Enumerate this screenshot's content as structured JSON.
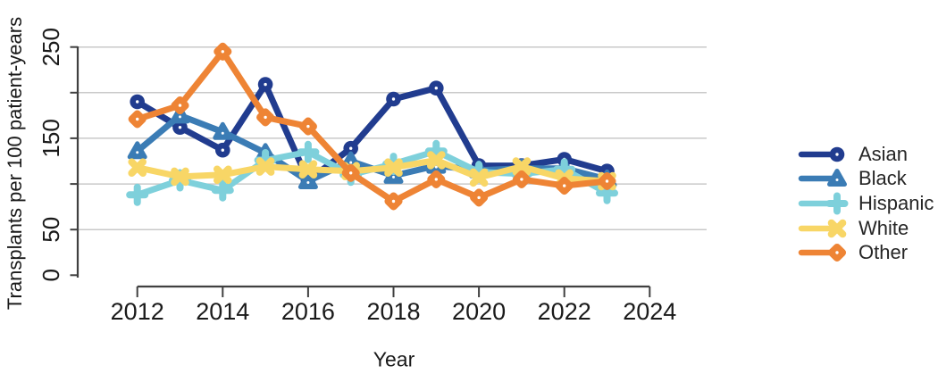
{
  "chart_data": {
    "type": "line",
    "title": "",
    "xlabel": "Year",
    "ylabel": "Transplants per 100 patient-years",
    "x": [
      2012,
      2013,
      2014,
      2015,
      2016,
      2017,
      2018,
      2019,
      2020,
      2021,
      2022,
      2023
    ],
    "series": [
      {
        "name": "Asian",
        "color": "#213c8f",
        "marker": "circle",
        "values": [
          190,
          162,
          137,
          209,
          104,
          139,
          193,
          205,
          120,
          120,
          127,
          114
        ]
      },
      {
        "name": "Black",
        "color": "#3b7cb5",
        "marker": "triangle",
        "values": [
          136,
          175,
          157,
          134,
          103,
          125,
          109,
          120,
          115,
          117,
          117,
          105
        ]
      },
      {
        "name": "Hispanic",
        "color": "#7ed0db",
        "marker": "plus",
        "values": [
          88,
          104,
          93,
          126,
          135,
          110,
          122,
          136,
          113,
          111,
          116,
          90
        ]
      },
      {
        "name": "White",
        "color": "#f8d666",
        "marker": "x",
        "values": [
          118,
          108,
          110,
          119,
          116,
          114,
          118,
          126,
          107,
          119,
          106,
          103
        ]
      },
      {
        "name": "Other",
        "color": "#ee8435",
        "marker": "diamond",
        "values": [
          171,
          186,
          245,
          173,
          163,
          112,
          81,
          105,
          85,
          105,
          98,
          103
        ]
      }
    ],
    "x_ticks": [
      2012,
      2014,
      2016,
      2018,
      2020,
      2022,
      2024
    ],
    "y_ticks_all": [
      0,
      50,
      100,
      150,
      200,
      250
    ],
    "y_ticks_labeled": [
      0,
      50,
      150,
      250
    ],
    "xlim": [
      2012,
      2024
    ],
    "ylim": [
      0,
      250
    ],
    "grid": "horizontal-only",
    "legend_position": "right",
    "axis_color": "#404040",
    "grid_color": "#c9c9c9",
    "text_color": "#1a1a1a"
  }
}
